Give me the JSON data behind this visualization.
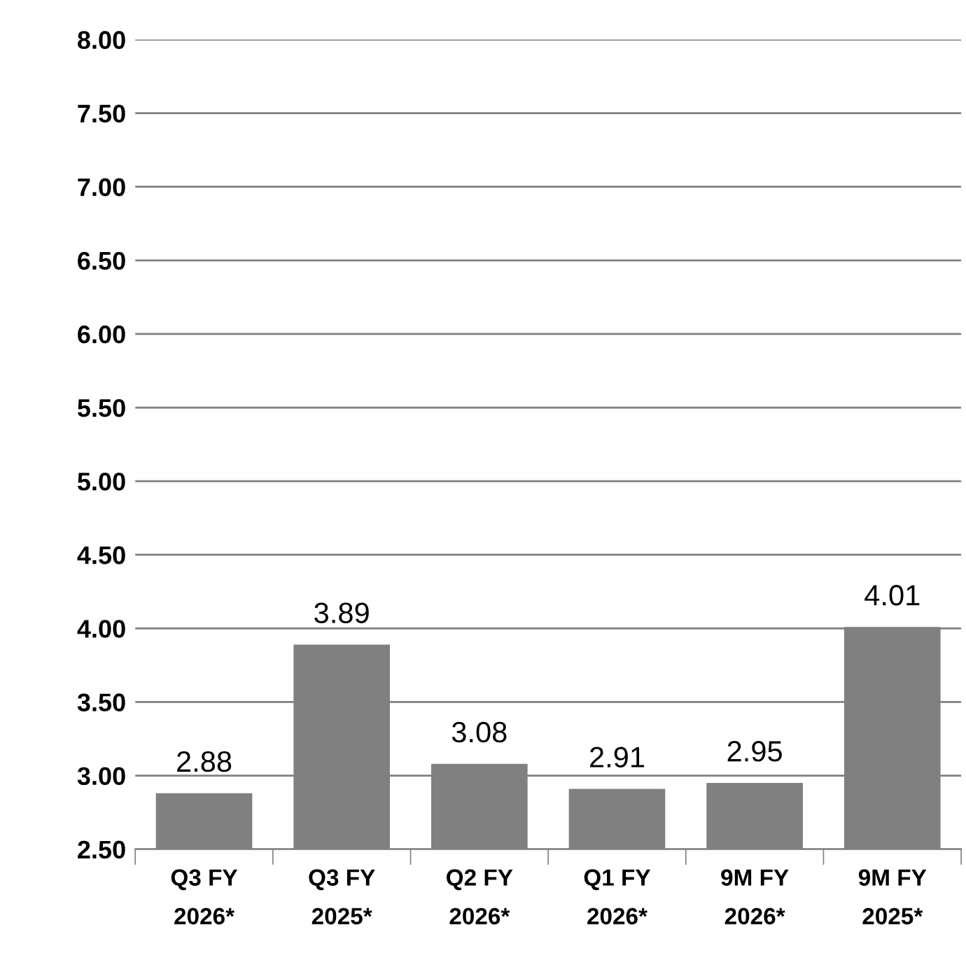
{
  "chart_data": {
    "type": "bar",
    "categories": [
      "Q3 FY\n2026*",
      "Q3 FY\n2025*",
      "Q2 FY\n2026*",
      "Q1 FY\n2026*",
      "9M FY\n2026*",
      "9M FY\n2025*"
    ],
    "values": [
      2.88,
      3.89,
      3.08,
      2.91,
      2.95,
      4.01
    ],
    "value_labels": [
      "2.88",
      "3.89",
      "3.08",
      "2.91",
      "2.95",
      "4.01"
    ],
    "color": "#808080",
    "ylim": [
      2.5,
      8.0
    ],
    "yticks": [
      {
        "value": 2.5,
        "label": "2.50"
      },
      {
        "value": 3.0,
        "label": "3.00"
      },
      {
        "value": 3.5,
        "label": "3.50"
      },
      {
        "value": 4.0,
        "label": "4.00"
      },
      {
        "value": 4.5,
        "label": "4.50"
      },
      {
        "value": 5.0,
        "label": "5.00"
      },
      {
        "value": 5.5,
        "label": "5.50"
      },
      {
        "value": 6.0,
        "label": "6.00"
      },
      {
        "value": 6.5,
        "label": "6.50"
      },
      {
        "value": 7.0,
        "label": "7.00"
      },
      {
        "value": 7.5,
        "label": "7.50"
      },
      {
        "value": 8.0,
        "label": "8.00"
      }
    ],
    "grid": "y"
  }
}
